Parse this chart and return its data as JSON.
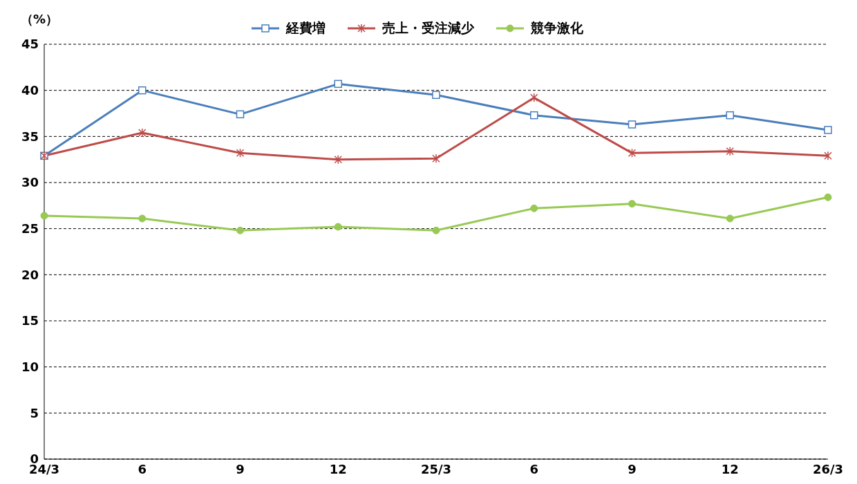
{
  "chart_data": {
    "type": "line",
    "ylabel": "（%）",
    "categories": [
      "24/3",
      "6",
      "9",
      "12",
      "25/3",
      "6",
      "9",
      "12",
      "26/3"
    ],
    "series": [
      {
        "name": "経費増",
        "color": "#4a7ebb",
        "marker": "square",
        "values": [
          32.9,
          40.0,
          37.4,
          40.7,
          39.5,
          37.3,
          36.3,
          37.3,
          35.7
        ]
      },
      {
        "name": "売上・受注減少",
        "color": "#be4b48",
        "marker": "cross",
        "values": [
          32.9,
          35.4,
          33.2,
          32.5,
          32.6,
          39.2,
          33.2,
          33.4,
          32.9
        ]
      },
      {
        "name": "競争激化",
        "color": "#98c954",
        "marker": "circle",
        "values": [
          26.4,
          26.1,
          24.8,
          25.2,
          24.8,
          27.2,
          27.7,
          26.1,
          28.4
        ]
      }
    ],
    "ylim": [
      0,
      45
    ],
    "yticks": [
      0,
      5,
      10,
      15,
      20,
      25,
      30,
      35,
      40,
      45
    ],
    "grid": "y",
    "legend": "top",
    "line_style": "solid"
  }
}
